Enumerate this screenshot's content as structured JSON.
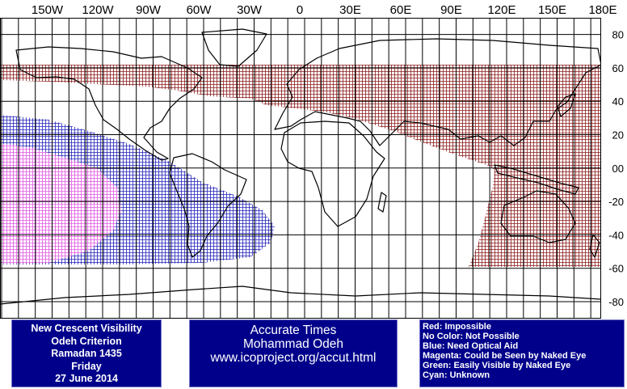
{
  "map": {
    "lon_labels": [
      "150W",
      "120W",
      "90W",
      "60W",
      "30W",
      "0",
      "30E",
      "60E",
      "90E",
      "120E",
      "150E",
      "180E"
    ],
    "lat_labels": [
      "80",
      "60",
      "40",
      "20",
      "00",
      "-20",
      "-40",
      "-60",
      "-80"
    ],
    "colors": {
      "impossible": "#8b1a1a",
      "optical_aid": "#2222bb",
      "naked_eye": "#e055e0",
      "grid": "#000000",
      "land_outline": "#000000"
    }
  },
  "info": {
    "line1": "New Crescent Visibility",
    "line2": "Odeh Criterion",
    "line3": "Ramadan 1435",
    "line4": "Friday",
    "line5": "27 June 2014"
  },
  "credits": {
    "line1": "Accurate Times",
    "line2": "Mohammad Odeh",
    "line3": "www.icoproject.org/accut.html"
  },
  "legend": {
    "red": "Red: Impossible",
    "none": "No Color: Not Possible",
    "blue": "Blue: Need Optical Aid",
    "magenta": "Magenta: Could be Seen by Naked Eye",
    "green": "Green: Easily Visible by Naked Eye",
    "cyan": "Cyan: Unknown"
  }
}
